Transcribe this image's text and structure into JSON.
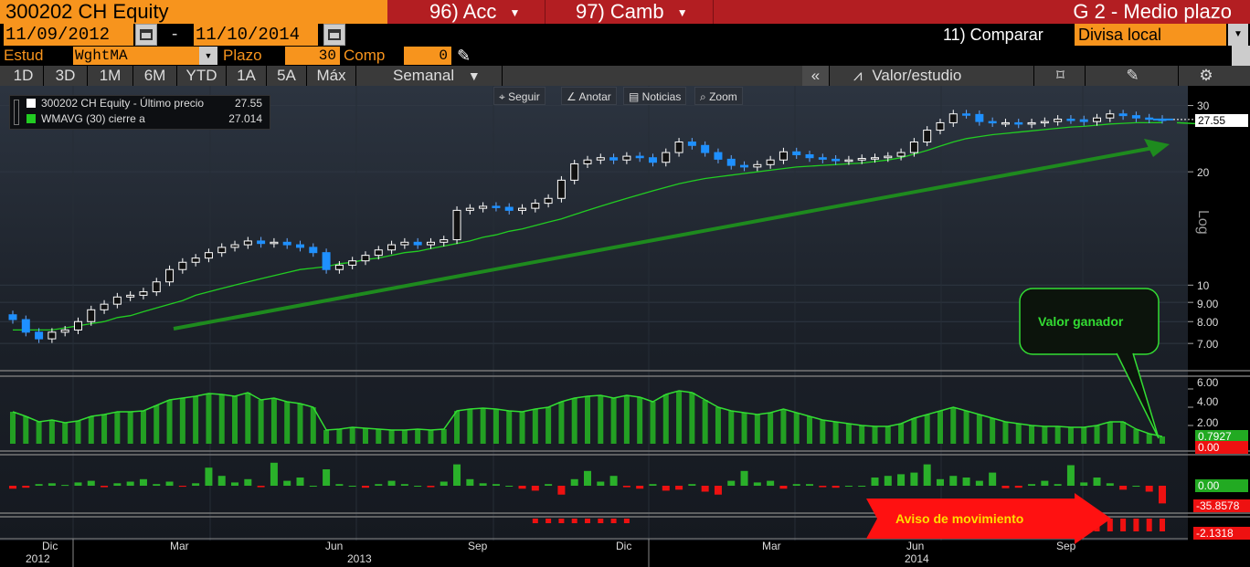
{
  "header": {
    "security": "300202 CH Equity",
    "menu_acc": "96) Acc",
    "menu_cambiar": "97) Camb",
    "chart_title": "G 2 - Medio plazo"
  },
  "dates": {
    "start": "11/09/2012",
    "separator": "-",
    "end": "11/10/2014"
  },
  "compare": {
    "label": "11) Comparar",
    "value": "Divisa local"
  },
  "study": {
    "label": "Estud",
    "value": "WghtMA",
    "period_label": "Plazo",
    "period_value": "30",
    "comp_label": "Comp",
    "comp_value": "0"
  },
  "periods": [
    "1D",
    "3D",
    "1M",
    "6M",
    "YTD",
    "1A",
    "5A",
    "Máx"
  ],
  "frequency": "Semanal",
  "right_toolbar": {
    "collapse": "«",
    "value_study": "Valor/estudio"
  },
  "tools": {
    "follow": "Seguir",
    "annotate": "Anotar",
    "news": "Noticias",
    "zoom": "Zoom"
  },
  "legend": [
    {
      "label": "300202 CH Equity - Último precio",
      "value": "27.55",
      "color": "#ffffff"
    },
    {
      "label": "WMAVG (30) cierre a",
      "value": "27.014",
      "color": "#22cc22"
    }
  ],
  "price_axis": {
    "scale_label": "Log",
    "ticks": [
      "30",
      "20",
      "10",
      "9.00",
      "8.00",
      "7.00"
    ],
    "last_price": "27.55"
  },
  "panel2_axis": {
    "ticks": [
      "6.00",
      "4.00",
      "2.00"
    ],
    "value": "0.7927",
    "zero": "0.00"
  },
  "panel3_axis": {
    "zero": "0.00",
    "value": "-35.8578"
  },
  "panel4_axis": {
    "value": "-2.1318"
  },
  "x_axis": {
    "months": [
      "Dic",
      "Mar",
      "Jun",
      "Sep",
      "Dic",
      "Mar",
      "Jun",
      "Sep"
    ],
    "years": [
      "2012",
      "2013",
      "2014"
    ]
  },
  "annotations": {
    "callout": "Valor ganador",
    "arrow_text": "Aviso de movimiento"
  },
  "colors": {
    "up_candle": "#ffffff",
    "down_candle": "#1e90ff",
    "moving_average": "#22cc22",
    "trend_arrow": "#1e8a1e",
    "header_red": "#b31e22",
    "field_orange": "#f7941d"
  },
  "chart_data": {
    "type": "candlestick",
    "y_scale": "log",
    "ylim": [
      6.7,
      32
    ],
    "weekly_close_approx": [
      8.1,
      7.5,
      7.2,
      7.5,
      7.6,
      8.0,
      8.6,
      8.9,
      9.3,
      9.4,
      9.6,
      10.2,
      11.0,
      11.5,
      11.8,
      12.2,
      12.6,
      12.8,
      13.1,
      12.9,
      13.0,
      12.8,
      12.6,
      12.2,
      11.0,
      11.3,
      11.6,
      12.0,
      12.4,
      12.8,
      13.0,
      12.8,
      13.0,
      13.2,
      15.8,
      16.0,
      16.2,
      16.1,
      15.8,
      16.0,
      16.5,
      17.0,
      19.0,
      21.0,
      21.5,
      21.8,
      21.5,
      22.0,
      21.8,
      21.2,
      22.5,
      24.0,
      23.5,
      22.5,
      21.6,
      20.8,
      20.6,
      20.9,
      21.5,
      22.6,
      22.2,
      21.8,
      21.6,
      21.4,
      21.5,
      21.7,
      21.8,
      22.0,
      22.5,
      24.0,
      25.8,
      27.0,
      28.5,
      28.4,
      27.2,
      27.0,
      27.0,
      26.8,
      27.0,
      27.2,
      27.6,
      27.5,
      27.2,
      27.8,
      28.5,
      28.2,
      27.8,
      27.6,
      27.55
    ],
    "moving_average_approx": [
      7.6,
      7.6,
      7.6,
      7.6,
      7.7,
      7.8,
      7.9,
      8.0,
      8.2,
      8.3,
      8.5,
      8.7,
      8.9,
      9.1,
      9.4,
      9.6,
      9.8,
      10.0,
      10.2,
      10.4,
      10.6,
      10.8,
      11.0,
      11.1,
      11.2,
      11.4,
      11.5,
      11.7,
      11.8,
      12.0,
      12.2,
      12.3,
      12.5,
      12.7,
      12.9,
      13.1,
      13.4,
      13.6,
      13.9,
      14.1,
      14.4,
      14.7,
      15.0,
      15.4,
      15.8,
      16.2,
      16.6,
      17.0,
      17.4,
      17.8,
      18.2,
      18.6,
      18.9,
      19.2,
      19.4,
      19.6,
      19.8,
      20.0,
      20.2,
      20.4,
      20.6,
      20.7,
      20.8,
      20.9,
      21.0,
      21.1,
      21.3,
      21.5,
      21.8,
      22.3,
      22.8,
      23.4,
      24.0,
      24.5,
      24.8,
      25.1,
      25.3,
      25.5,
      25.7,
      25.9,
      26.1,
      26.3,
      26.4,
      26.6,
      26.8,
      26.9,
      27.0,
      27.0,
      27.014
    ],
    "panel2_values_approx": [
      3.5,
      3.0,
      2.4,
      2.6,
      2.3,
      2.5,
      3.0,
      3.2,
      3.5,
      3.5,
      3.6,
      4.2,
      4.8,
      5.0,
      5.2,
      5.5,
      5.4,
      5.2,
      5.6,
      4.8,
      5.0,
      4.6,
      4.4,
      4.0,
      1.5,
      1.6,
      1.8,
      1.7,
      1.6,
      1.5,
      1.5,
      1.6,
      1.5,
      1.6,
      3.6,
      3.8,
      3.9,
      3.8,
      3.6,
      3.5,
      3.8,
      4.0,
      4.6,
      5.0,
      5.2,
      5.3,
      5.0,
      5.3,
      5.1,
      4.6,
      5.4,
      5.8,
      5.6,
      4.8,
      4.0,
      3.6,
      3.4,
      3.2,
      3.4,
      3.8,
      3.4,
      3.0,
      2.6,
      2.4,
      2.2,
      2.0,
      1.9,
      1.9,
      2.2,
      2.8,
      3.2,
      3.6,
      4.0,
      3.6,
      3.2,
      2.8,
      2.4,
      2.2,
      2.0,
      1.9,
      1.9,
      1.8,
      1.8,
      2.0,
      2.4,
      2.4,
      1.6,
      1.1,
      0.7927
    ],
    "panel3_values_approx": [
      -6,
      -4,
      2,
      3,
      1,
      4,
      6,
      -3,
      3,
      5,
      8,
      2,
      5,
      -2,
      3,
      22,
      12,
      4,
      8,
      -3,
      28,
      6,
      10,
      0,
      20,
      2,
      0,
      -4,
      2,
      6,
      2,
      0,
      -3,
      5,
      26,
      8,
      3,
      2,
      0,
      -6,
      -10,
      2,
      -18,
      8,
      18,
      5,
      12,
      -3,
      -6,
      2,
      -10,
      -8,
      2,
      -12,
      -18,
      6,
      18,
      4,
      6,
      -6,
      2,
      2,
      -3,
      -4,
      0,
      0,
      10,
      12,
      14,
      16,
      26,
      8,
      12,
      10,
      6,
      16,
      -5,
      -4,
      2,
      6,
      2,
      25,
      4,
      10,
      3,
      -8,
      0,
      -12,
      -35.8578
    ]
  }
}
